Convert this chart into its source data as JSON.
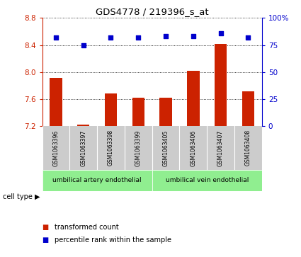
{
  "title": "GDS4778 / 219396_s_at",
  "samples": [
    "GSM1063396",
    "GSM1063397",
    "GSM1063398",
    "GSM1063399",
    "GSM1063405",
    "GSM1063406",
    "GSM1063407",
    "GSM1063408"
  ],
  "bar_values": [
    7.92,
    7.22,
    7.68,
    7.62,
    7.62,
    8.02,
    8.42,
    7.72
  ],
  "dot_values": [
    82,
    75,
    82,
    82,
    83,
    83,
    86,
    82
  ],
  "ylim_left": [
    7.2,
    8.8
  ],
  "ylim_right": [
    0,
    100
  ],
  "yticks_left": [
    7.2,
    7.6,
    8.0,
    8.4,
    8.8
  ],
  "yticks_right": [
    0,
    25,
    50,
    75,
    100
  ],
  "bar_color": "#cc2200",
  "dot_color": "#0000cc",
  "group1_label": "umbilical artery endothelial",
  "group2_label": "umbilical vein endothelial",
  "group1_count": 4,
  "group2_count": 4,
  "cell_type_label": "cell type",
  "legend1": "transformed count",
  "legend2": "percentile rank within the sample",
  "background_color": "#ffffff",
  "label_area_color": "#cccccc",
  "group_area_color": "#90ee90"
}
